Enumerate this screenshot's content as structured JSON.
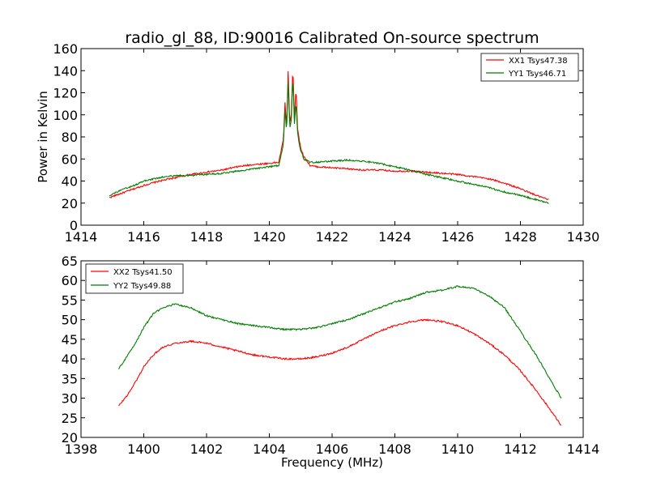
{
  "title": "radio_gl_88, ID:90016 Calibrated On-source spectrum",
  "colors": {
    "red": "#ff0000",
    "green": "#007f00"
  },
  "chart_data": [
    {
      "type": "line",
      "position": "top",
      "xlabel": "",
      "ylabel": "Power in Kelvin",
      "xlim": [
        1414,
        1430
      ],
      "ylim": [
        0,
        160
      ],
      "xticks": [
        1414,
        1416,
        1418,
        1420,
        1422,
        1424,
        1426,
        1428,
        1430
      ],
      "yticks": [
        0,
        20,
        40,
        60,
        80,
        100,
        120,
        140,
        160
      ],
      "legend": "top-right",
      "series": [
        {
          "name": "XX1 Tsys47.38",
          "color": "#ff0000",
          "x": [
            1414.9,
            1415.3,
            1415.7,
            1416.0,
            1416.5,
            1417.0,
            1417.5,
            1418.0,
            1418.5,
            1419.0,
            1419.5,
            1420.0,
            1420.3,
            1420.45,
            1420.5,
            1420.55,
            1420.6,
            1420.65,
            1420.7,
            1420.75,
            1420.8,
            1420.85,
            1420.9,
            1420.95,
            1421.0,
            1421.1,
            1421.3,
            1421.5,
            1422.0,
            1422.5,
            1423.0,
            1423.5,
            1424.0,
            1424.5,
            1425.0,
            1425.5,
            1426.0,
            1426.5,
            1427.0,
            1427.5,
            1428.0,
            1428.5,
            1428.9
          ],
          "values": [
            25,
            29,
            33,
            36,
            40,
            43,
            46,
            48,
            50,
            53,
            55,
            56,
            57,
            78,
            112,
            88,
            140,
            92,
            100,
            144,
            96,
            125,
            88,
            78,
            70,
            62,
            54,
            53,
            52,
            51,
            50,
            50,
            49,
            49,
            48,
            47,
            46,
            44,
            42,
            38,
            33,
            27,
            23
          ]
        },
        {
          "name": "YY1 Tsys46.71",
          "color": "#007f00",
          "x": [
            1414.9,
            1415.3,
            1415.7,
            1416.0,
            1416.5,
            1417.0,
            1417.5,
            1418.0,
            1418.5,
            1419.0,
            1419.5,
            1420.0,
            1420.3,
            1420.45,
            1420.5,
            1420.55,
            1420.6,
            1420.65,
            1420.7,
            1420.75,
            1420.8,
            1420.85,
            1420.9,
            1420.95,
            1421.0,
            1421.1,
            1421.3,
            1421.5,
            1422.0,
            1422.5,
            1423.0,
            1423.5,
            1424.0,
            1424.5,
            1425.0,
            1425.5,
            1426.0,
            1426.5,
            1427.0,
            1427.5,
            1428.0,
            1428.5,
            1428.9
          ],
          "values": [
            27,
            32,
            36,
            40,
            43,
            45,
            45,
            46,
            47,
            49,
            51,
            53,
            54,
            74,
            105,
            84,
            130,
            88,
            95,
            136,
            92,
            112,
            84,
            74,
            68,
            60,
            57,
            57,
            58,
            59,
            58,
            56,
            53,
            50,
            46,
            43,
            40,
            37,
            34,
            30,
            27,
            23,
            20
          ]
        }
      ]
    },
    {
      "type": "line",
      "position": "bottom",
      "xlabel": "Frequency (MHz)",
      "ylabel": "",
      "xlim": [
        1398,
        1414
      ],
      "ylim": [
        20,
        65
      ],
      "xticks": [
        1398,
        1400,
        1402,
        1404,
        1406,
        1408,
        1410,
        1412,
        1414
      ],
      "yticks": [
        20,
        25,
        30,
        35,
        40,
        45,
        50,
        55,
        60,
        65
      ],
      "legend": "top-left",
      "series": [
        {
          "name": "XX2 Tsys41.50",
          "color": "#ff0000",
          "x": [
            1399.2,
            1399.5,
            1399.8,
            1400.0,
            1400.3,
            1400.6,
            1401.0,
            1401.5,
            1402.0,
            1402.5,
            1403.0,
            1403.5,
            1404.0,
            1404.5,
            1405.0,
            1405.5,
            1406.0,
            1406.5,
            1407.0,
            1407.5,
            1408.0,
            1408.5,
            1409.0,
            1409.5,
            1410.0,
            1410.5,
            1411.0,
            1411.5,
            1412.0,
            1412.5,
            1413.0,
            1413.3
          ],
          "values": [
            28,
            31,
            35,
            38,
            41,
            43,
            44,
            44.5,
            44,
            43,
            42,
            41,
            40.5,
            40,
            40,
            40.5,
            41.5,
            43,
            45,
            47,
            48.5,
            49.5,
            50,
            49.5,
            48.5,
            46.5,
            44,
            41,
            37,
            32,
            26.5,
            23
          ]
        },
        {
          "name": "YY2 Tsys49.88",
          "color": "#007f00",
          "x": [
            1399.2,
            1399.5,
            1399.8,
            1400.0,
            1400.3,
            1400.6,
            1401.0,
            1401.5,
            1402.0,
            1402.5,
            1403.0,
            1403.5,
            1404.0,
            1404.5,
            1405.0,
            1405.5,
            1406.0,
            1406.5,
            1407.0,
            1407.5,
            1408.0,
            1408.5,
            1409.0,
            1409.5,
            1410.0,
            1410.5,
            1411.0,
            1411.5,
            1412.0,
            1412.5,
            1413.0,
            1413.3
          ],
          "values": [
            37.5,
            41,
            45,
            48,
            51.5,
            53,
            54,
            53,
            51,
            50,
            49,
            48.5,
            48,
            47.5,
            47.5,
            48,
            49,
            50,
            51.5,
            53,
            54.5,
            55.5,
            57,
            57.5,
            58.5,
            58,
            56,
            53,
            47,
            41,
            34,
            30
          ]
        }
      ]
    }
  ]
}
